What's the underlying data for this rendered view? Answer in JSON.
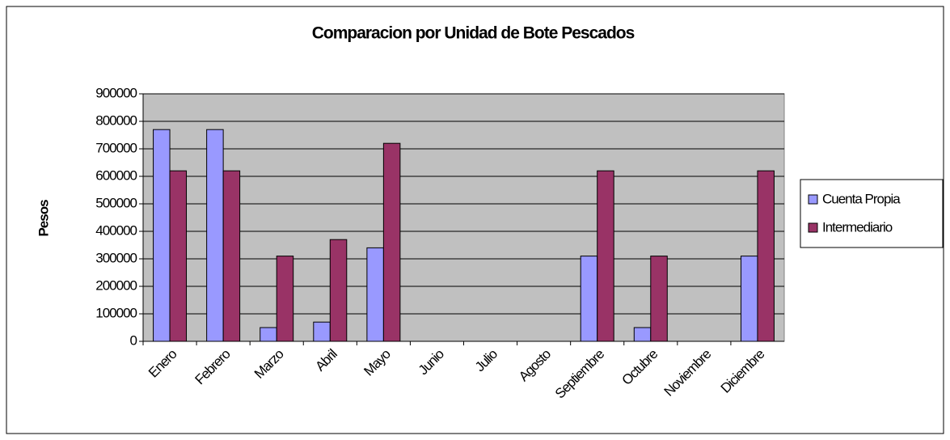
{
  "chart_data": {
    "type": "bar",
    "title": "Comparacion por Unidad de Bote Pescados",
    "y_label": "Pesos",
    "categories": [
      "Enero",
      "Febrero",
      "Marzo",
      "Abril",
      "Mayo",
      "Junio",
      "Julio",
      "Agosto",
      "Septiembre",
      "Octubre",
      "Noviembre",
      "Diciembre"
    ],
    "series": [
      {
        "name": "Cuenta Propia",
        "color": "#9999ff",
        "values": [
          770000,
          770000,
          50000,
          70000,
          340000,
          0,
          0,
          0,
          310000,
          50000,
          0,
          310000
        ]
      },
      {
        "name": "Intermediario",
        "color": "#993366",
        "values": [
          620000,
          620000,
          310000,
          370000,
          720000,
          0,
          0,
          0,
          620000,
          310000,
          0,
          620000
        ]
      }
    ],
    "ylim": [
      0,
      900000
    ],
    "yticks": [
      0,
      100000,
      200000,
      300000,
      400000,
      500000,
      600000,
      700000,
      800000,
      900000
    ],
    "grid": true,
    "legend": "right",
    "plot_background": "#c0c0c0"
  }
}
